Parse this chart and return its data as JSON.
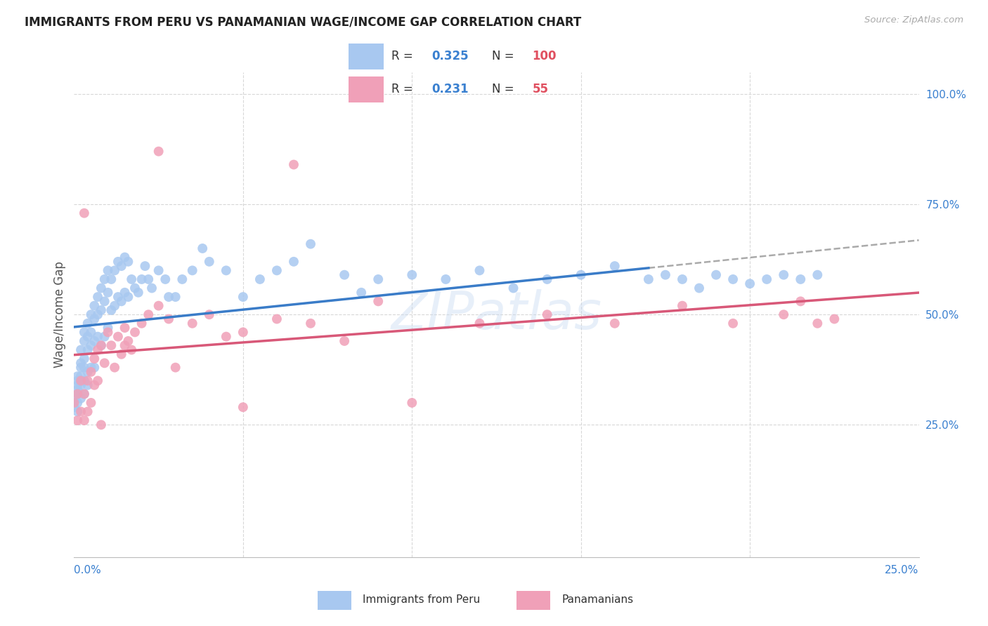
{
  "title": "IMMIGRANTS FROM PERU VS PANAMANIAN WAGE/INCOME GAP CORRELATION CHART",
  "source": "Source: ZipAtlas.com",
  "ylabel": "Wage/Income Gap",
  "xlim": [
    0.0,
    0.25
  ],
  "ylim": [
    -0.05,
    1.05
  ],
  "ytick_values": [
    0.25,
    0.5,
    0.75,
    1.0
  ],
  "background_color": "#ffffff",
  "grid_color": "#d8d8d8",
  "series1_color": "#a8c8f0",
  "series2_color": "#f0a0b8",
  "line1_color": "#3a7cc8",
  "line1_dash_color": "#aaaaaa",
  "line2_color": "#d85878",
  "R1": 0.325,
  "N1": 100,
  "R2": 0.231,
  "N2": 55,
  "legend_label1": "Immigrants from Peru",
  "legend_label2": "Panamanians",
  "peru_x": [
    0.0,
    0.0,
    0.001,
    0.001,
    0.001,
    0.001,
    0.001,
    0.001,
    0.001,
    0.002,
    0.002,
    0.002,
    0.002,
    0.002,
    0.002,
    0.003,
    0.003,
    0.003,
    0.003,
    0.003,
    0.003,
    0.004,
    0.004,
    0.004,
    0.004,
    0.004,
    0.005,
    0.005,
    0.005,
    0.005,
    0.006,
    0.006,
    0.006,
    0.006,
    0.007,
    0.007,
    0.007,
    0.008,
    0.008,
    0.008,
    0.009,
    0.009,
    0.009,
    0.01,
    0.01,
    0.01,
    0.011,
    0.011,
    0.012,
    0.012,
    0.013,
    0.013,
    0.014,
    0.014,
    0.015,
    0.015,
    0.016,
    0.016,
    0.017,
    0.018,
    0.019,
    0.02,
    0.021,
    0.022,
    0.023,
    0.025,
    0.027,
    0.028,
    0.03,
    0.032,
    0.035,
    0.038,
    0.04,
    0.045,
    0.05,
    0.055,
    0.06,
    0.065,
    0.07,
    0.08,
    0.085,
    0.09,
    0.1,
    0.11,
    0.12,
    0.13,
    0.14,
    0.15,
    0.16,
    0.17,
    0.175,
    0.18,
    0.185,
    0.19,
    0.195,
    0.2,
    0.205,
    0.21,
    0.215,
    0.22
  ],
  "peru_y": [
    0.31,
    0.29,
    0.35,
    0.32,
    0.34,
    0.28,
    0.36,
    0.3,
    0.33,
    0.38,
    0.36,
    0.34,
    0.42,
    0.39,
    0.31,
    0.44,
    0.4,
    0.46,
    0.38,
    0.35,
    0.32,
    0.48,
    0.45,
    0.42,
    0.37,
    0.34,
    0.5,
    0.46,
    0.43,
    0.38,
    0.52,
    0.49,
    0.44,
    0.38,
    0.54,
    0.5,
    0.45,
    0.56,
    0.51,
    0.43,
    0.58,
    0.53,
    0.45,
    0.6,
    0.55,
    0.47,
    0.58,
    0.51,
    0.6,
    0.52,
    0.62,
    0.54,
    0.61,
    0.53,
    0.63,
    0.55,
    0.62,
    0.54,
    0.58,
    0.56,
    0.55,
    0.58,
    0.61,
    0.58,
    0.56,
    0.6,
    0.58,
    0.54,
    0.54,
    0.58,
    0.6,
    0.65,
    0.62,
    0.6,
    0.54,
    0.58,
    0.6,
    0.62,
    0.66,
    0.59,
    0.55,
    0.58,
    0.59,
    0.58,
    0.6,
    0.56,
    0.58,
    0.59,
    0.61,
    0.58,
    0.59,
    0.58,
    0.56,
    0.59,
    0.58,
    0.57,
    0.58,
    0.59,
    0.58,
    0.59
  ],
  "pan_x": [
    0.0,
    0.001,
    0.001,
    0.002,
    0.002,
    0.003,
    0.003,
    0.004,
    0.004,
    0.005,
    0.005,
    0.006,
    0.006,
    0.007,
    0.007,
    0.008,
    0.009,
    0.01,
    0.011,
    0.012,
    0.013,
    0.014,
    0.015,
    0.016,
    0.017,
    0.018,
    0.02,
    0.022,
    0.025,
    0.028,
    0.03,
    0.035,
    0.04,
    0.045,
    0.05,
    0.06,
    0.065,
    0.07,
    0.08,
    0.09,
    0.1,
    0.12,
    0.14,
    0.16,
    0.18,
    0.195,
    0.21,
    0.215,
    0.22,
    0.225,
    0.05,
    0.025,
    0.015,
    0.008,
    0.003
  ],
  "pan_y": [
    0.3,
    0.32,
    0.26,
    0.35,
    0.28,
    0.32,
    0.26,
    0.35,
    0.28,
    0.37,
    0.3,
    0.4,
    0.34,
    0.42,
    0.35,
    0.43,
    0.39,
    0.46,
    0.43,
    0.38,
    0.45,
    0.41,
    0.47,
    0.44,
    0.42,
    0.46,
    0.48,
    0.5,
    0.52,
    0.49,
    0.38,
    0.48,
    0.5,
    0.45,
    0.46,
    0.49,
    0.84,
    0.48,
    0.44,
    0.53,
    0.3,
    0.48,
    0.5,
    0.48,
    0.52,
    0.48,
    0.5,
    0.53,
    0.48,
    0.49,
    0.29,
    0.87,
    0.43,
    0.25,
    0.73
  ]
}
